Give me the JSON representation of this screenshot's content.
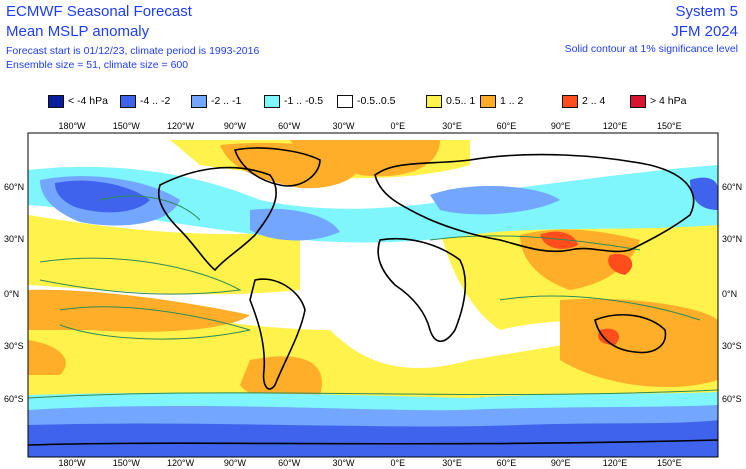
{
  "header": {
    "title": "ECMWF Seasonal Forecast",
    "subtitle": "Mean MSLP anomaly",
    "forecast_info": "Forecast start is 01/12/23, climate period is 1993-2016",
    "ensemble_info": "Ensemble size = 51, climate size = 600",
    "system": "System 5",
    "season": "JFM 2024",
    "significance_note": "Solid contour at 1% significance level"
  },
  "legend": [
    {
      "label": "< -4 hPa",
      "color": "#0b1c9e"
    },
    {
      "label": "-4 .. -2",
      "color": "#3f63ec"
    },
    {
      "label": "-2 .. -1",
      "color": "#72a6ff"
    },
    {
      "label": "-1 .. -0.5",
      "color": "#7ff6fb"
    },
    {
      "label": "-0.5..0.5",
      "color": "#ffffff"
    },
    {
      "label": "0.5.. 1",
      "color": "#fff24a"
    },
    {
      "label": "1 .. 2",
      "color": "#ffae2a"
    },
    {
      "label": "2 .. 4",
      "color": "#ff4d1b"
    },
    {
      "label": "> 4 hPa",
      "color": "#d81431"
    }
  ],
  "axes": {
    "lon_ticks": [
      "180°W",
      "150°W",
      "120°W",
      "90°W",
      "60°W",
      "30°W",
      "0°E",
      "30°E",
      "60°E",
      "90°E",
      "120°E",
      "150°E"
    ],
    "lat_ticks": [
      "60°N",
      "30°N",
      "0°N",
      "30°S",
      "60°S"
    ]
  },
  "colors": {
    "coastline": "#000000",
    "significance_contour": "#2e8b57",
    "text_blue": "#1f3dff"
  }
}
